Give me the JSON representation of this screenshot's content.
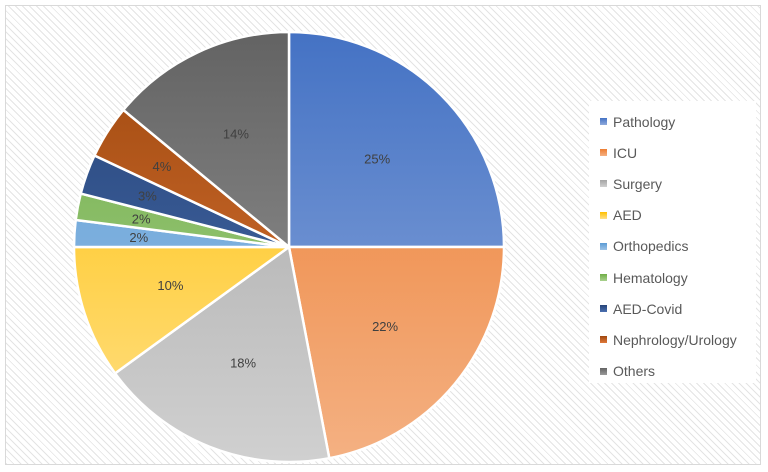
{
  "chart_data": {
    "type": "pie",
    "title": "",
    "legend_position": "right",
    "slices": [
      {
        "label": "Pathology",
        "value": 25,
        "display": "25%",
        "color": "#4472c4",
        "color_light": "#8faadc"
      },
      {
        "label": "ICU",
        "value": 22,
        "display": "22%",
        "color": "#ed7d31",
        "color_light": "#f4b183"
      },
      {
        "label": "Surgery",
        "value": 18,
        "display": "18%",
        "color": "#a5a5a5",
        "color_light": "#d0d0d0"
      },
      {
        "label": "AED",
        "value": 10,
        "display": "10%",
        "color": "#ffc000",
        "color_light": "#ffe08a"
      },
      {
        "label": "Orthopedics",
        "value": 2,
        "display": "2%",
        "color": "#5b9bd5",
        "color_light": "#9dc3e6"
      },
      {
        "label": "Hematology",
        "value": 2,
        "display": "2%",
        "color": "#70ad47",
        "color_light": "#a9d18e"
      },
      {
        "label": "AED-Covid",
        "value": 3,
        "display": "3%",
        "color": "#264478",
        "color_light": "#4a6fb0"
      },
      {
        "label": "Nephrology/Urology",
        "value": 4,
        "display": "4%",
        "color": "#9e480e",
        "color_light": "#e0793a"
      },
      {
        "label": "Others",
        "value": 14,
        "display": "14%",
        "color": "#636363",
        "color_light": "#9a9a9a"
      }
    ]
  }
}
